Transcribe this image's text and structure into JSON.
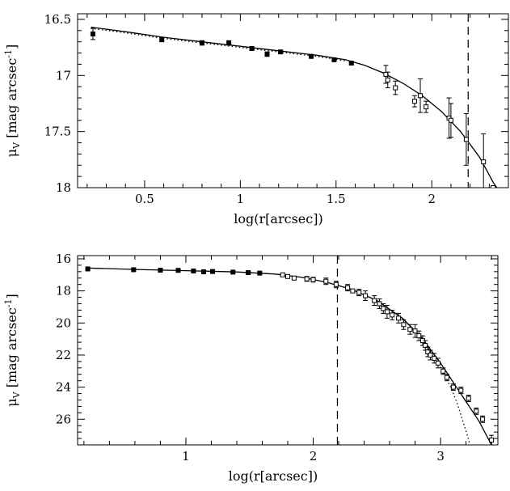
{
  "chart_data": [
    {
      "type": "scatter",
      "panel": "top",
      "xlabel": "log(r[arcsec])",
      "ylabel": "μ_V [mag arcsec⁻¹]",
      "ylabel_text": {
        "mu": "μ",
        "sub": "V",
        "bracket": " [mag arcsec",
        "sup": "-1",
        "close": "]"
      },
      "xlim": [
        0.15,
        2.4
      ],
      "ylim": [
        18.0,
        16.45
      ],
      "y_inverted": true,
      "x_ticks": [
        0.5,
        1,
        1.5,
        2
      ],
      "x_tick_labels": [
        "0.5",
        "1",
        "1.5",
        "2"
      ],
      "y_ticks": [
        16.5,
        17,
        17.5,
        18
      ],
      "y_tick_labels": [
        "16.5",
        "17",
        "17.5",
        "18"
      ],
      "vline_x": 2.19,
      "series": [
        {
          "marker": "filled-square",
          "points": [
            {
              "x": 0.23,
              "y": 16.63,
              "err": 0.05
            },
            {
              "x": 0.59,
              "y": 16.68,
              "err": 0.02
            },
            {
              "x": 0.8,
              "y": 16.71,
              "err": 0.02
            },
            {
              "x": 0.94,
              "y": 16.71,
              "err": 0.02
            },
            {
              "x": 1.06,
              "y": 16.76,
              "err": 0.015
            },
            {
              "x": 1.14,
              "y": 16.81,
              "err": 0.02
            },
            {
              "x": 1.21,
              "y": 16.79,
              "err": 0.015
            },
            {
              "x": 1.37,
              "y": 16.83,
              "err": 0.01
            },
            {
              "x": 1.49,
              "y": 16.86,
              "err": 0.01
            },
            {
              "x": 1.58,
              "y": 16.89,
              "err": 0.01
            }
          ]
        },
        {
          "marker": "open-square",
          "points": [
            {
              "x": 1.76,
              "y": 16.99,
              "err": 0.08
            },
            {
              "x": 1.77,
              "y": 17.04,
              "err": 0.07
            },
            {
              "x": 1.81,
              "y": 17.11,
              "err": 0.06
            },
            {
              "x": 1.91,
              "y": 17.23,
              "err": 0.05
            },
            {
              "x": 1.94,
              "y": 17.18,
              "err": 0.15
            },
            {
              "x": 1.97,
              "y": 17.28,
              "err": 0.05
            },
            {
              "x": 2.09,
              "y": 17.38,
              "err": 0.18
            },
            {
              "x": 2.1,
              "y": 17.4,
              "err": 0.15
            },
            {
              "x": 2.18,
              "y": 17.57,
              "err": 0.23
            },
            {
              "x": 2.27,
              "y": 17.77,
              "err": 0.25
            },
            {
              "x": 2.32,
              "y": 18.0,
              "err": 0.0
            }
          ]
        }
      ],
      "curves": [
        {
          "style": "solid",
          "points": [
            [
              0.22,
              16.57
            ],
            [
              0.4,
              16.61
            ],
            [
              0.6,
              16.66
            ],
            [
              0.8,
              16.7
            ],
            [
              1.0,
              16.74
            ],
            [
              1.2,
              16.78
            ],
            [
              1.4,
              16.82
            ],
            [
              1.55,
              16.86
            ],
            [
              1.65,
              16.91
            ],
            [
              1.75,
              16.98
            ],
            [
              1.85,
              17.07
            ],
            [
              1.95,
              17.18
            ],
            [
              2.05,
              17.32
            ],
            [
              2.15,
              17.5
            ],
            [
              2.25,
              17.73
            ],
            [
              2.32,
              17.95
            ],
            [
              2.34,
              18.0
            ]
          ]
        },
        {
          "style": "dotted",
          "points": [
            [
              0.22,
              16.58
            ],
            [
              0.4,
              16.62
            ],
            [
              0.6,
              16.67
            ],
            [
              0.8,
              16.71
            ],
            [
              1.0,
              16.75
            ],
            [
              1.2,
              16.79
            ],
            [
              1.4,
              16.83
            ],
            [
              1.55,
              16.87
            ]
          ]
        }
      ]
    },
    {
      "type": "scatter",
      "panel": "bottom",
      "xlabel": "log(r[arcsec])",
      "ylabel": "μ_V [mag arcsec⁻¹]",
      "ylabel_text": {
        "mu": "μ",
        "sub": "V",
        "bracket": " [mag arcsec",
        "sup": "-1",
        "close": "]"
      },
      "xlim": [
        0.15,
        3.45
      ],
      "ylim": [
        27.6,
        15.8
      ],
      "y_inverted": true,
      "x_ticks": [
        1,
        2,
        3
      ],
      "x_tick_labels": [
        "1",
        "2",
        "3"
      ],
      "y_ticks": [
        16,
        18,
        20,
        22,
        24,
        26
      ],
      "y_tick_labels": [
        "16",
        "18",
        "20",
        "22",
        "24",
        "26"
      ],
      "vline_x": 2.19,
      "series": [
        {
          "marker": "filled-square",
          "points": [
            {
              "x": 0.23,
              "y": 16.63,
              "err": 0.05
            },
            {
              "x": 0.59,
              "y": 16.68,
              "err": 0.03
            },
            {
              "x": 0.8,
              "y": 16.71,
              "err": 0.03
            },
            {
              "x": 0.94,
              "y": 16.72,
              "err": 0.03
            },
            {
              "x": 1.06,
              "y": 16.76,
              "err": 0.03
            },
            {
              "x": 1.14,
              "y": 16.81,
              "err": 0.03
            },
            {
              "x": 1.21,
              "y": 16.79,
              "err": 0.03
            },
            {
              "x": 1.37,
              "y": 16.83,
              "err": 0.03
            },
            {
              "x": 1.49,
              "y": 16.86,
              "err": 0.03
            },
            {
              "x": 1.58,
              "y": 16.89,
              "err": 0.03
            }
          ]
        },
        {
          "marker": "open-square",
          "points": [
            {
              "x": 1.76,
              "y": 17.0,
              "err": 0.1
            },
            {
              "x": 1.8,
              "y": 17.1,
              "err": 0.1
            },
            {
              "x": 1.85,
              "y": 17.2,
              "err": 0.1
            },
            {
              "x": 1.95,
              "y": 17.25,
              "err": 0.15
            },
            {
              "x": 2.0,
              "y": 17.3,
              "err": 0.15
            },
            {
              "x": 2.1,
              "y": 17.4,
              "err": 0.2
            },
            {
              "x": 2.18,
              "y": 17.6,
              "err": 0.2
            },
            {
              "x": 2.27,
              "y": 17.8,
              "err": 0.2
            },
            {
              "x": 2.31,
              "y": 18.0,
              "err": 0.1
            },
            {
              "x": 2.36,
              "y": 18.1,
              "err": 0.2
            },
            {
              "x": 2.41,
              "y": 18.3,
              "err": 0.3
            },
            {
              "x": 2.48,
              "y": 18.6,
              "err": 0.3
            },
            {
              "x": 2.52,
              "y": 18.8,
              "err": 0.3
            },
            {
              "x": 2.55,
              "y": 19.1,
              "err": 0.3
            },
            {
              "x": 2.58,
              "y": 19.3,
              "err": 0.4
            },
            {
              "x": 2.62,
              "y": 19.5,
              "err": 0.3
            },
            {
              "x": 2.67,
              "y": 19.7,
              "err": 0.3
            },
            {
              "x": 2.71,
              "y": 20.1,
              "err": 0.3
            },
            {
              "x": 2.76,
              "y": 20.4,
              "err": 0.3
            },
            {
              "x": 2.8,
              "y": 20.5,
              "err": 0.4
            },
            {
              "x": 2.83,
              "y": 20.8,
              "err": 0.3
            },
            {
              "x": 2.86,
              "y": 21.1,
              "err": 0.3
            },
            {
              "x": 2.88,
              "y": 21.4,
              "err": 0.3
            },
            {
              "x": 2.9,
              "y": 21.8,
              "err": 0.3
            },
            {
              "x": 2.92,
              "y": 22.0,
              "err": 0.3
            },
            {
              "x": 2.95,
              "y": 22.2,
              "err": 0.3
            },
            {
              "x": 2.98,
              "y": 22.5,
              "err": 0.3
            },
            {
              "x": 3.02,
              "y": 23.0,
              "err": 0.2
            },
            {
              "x": 3.05,
              "y": 23.4,
              "err": 0.2
            },
            {
              "x": 3.1,
              "y": 24.0,
              "err": 0.2
            },
            {
              "x": 3.16,
              "y": 24.2,
              "err": 0.2
            },
            {
              "x": 3.22,
              "y": 24.7,
              "err": 0.2
            },
            {
              "x": 3.28,
              "y": 25.5,
              "err": 0.2
            },
            {
              "x": 3.33,
              "y": 26.0,
              "err": 0.2
            },
            {
              "x": 3.4,
              "y": 27.3,
              "err": 0.3
            }
          ]
        }
      ],
      "curves": [
        {
          "style": "solid",
          "points": [
            [
              0.22,
              16.57
            ],
            [
              0.6,
              16.66
            ],
            [
              1.0,
              16.74
            ],
            [
              1.4,
              16.82
            ],
            [
              1.7,
              16.95
            ],
            [
              1.9,
              17.14
            ],
            [
              2.1,
              17.45
            ],
            [
              2.3,
              17.9
            ],
            [
              2.5,
              18.6
            ],
            [
              2.7,
              19.7
            ],
            [
              2.85,
              20.9
            ],
            [
              3.0,
              22.5
            ],
            [
              3.1,
              23.7
            ],
            [
              3.2,
              24.9
            ],
            [
              3.3,
              26.1
            ],
            [
              3.36,
              27.0
            ],
            [
              3.4,
              27.6
            ]
          ]
        },
        {
          "style": "dotted",
          "points": [
            [
              2.7,
              19.7
            ],
            [
              2.85,
              20.95
            ],
            [
              3.0,
              22.8
            ],
            [
              3.08,
              24.0
            ],
            [
              3.13,
              25.0
            ],
            [
              3.17,
              26.0
            ],
            [
              3.21,
              27.0
            ],
            [
              3.23,
              27.6
            ]
          ]
        }
      ]
    }
  ]
}
